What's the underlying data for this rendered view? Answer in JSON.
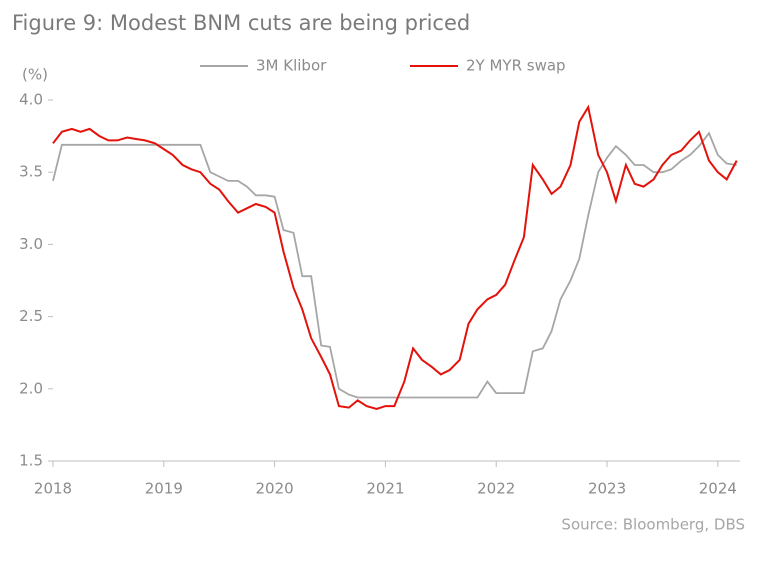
{
  "chart_data": {
    "type": "line",
    "title": "Figure 9: Modest BNM cuts are being priced",
    "y_unit": "(%)",
    "source": "Source: Bloomberg, DBS",
    "x": [
      2018.0,
      2018.08,
      2018.17,
      2018.25,
      2018.33,
      2018.42,
      2018.5,
      2018.58,
      2018.67,
      2018.75,
      2018.83,
      2018.92,
      2019.0,
      2019.08,
      2019.17,
      2019.25,
      2019.33,
      2019.42,
      2019.5,
      2019.58,
      2019.67,
      2019.75,
      2019.83,
      2019.92,
      2020.0,
      2020.08,
      2020.17,
      2020.25,
      2020.33,
      2020.42,
      2020.5,
      2020.58,
      2020.67,
      2020.75,
      2020.83,
      2020.92,
      2021.0,
      2021.08,
      2021.17,
      2021.25,
      2021.33,
      2021.42,
      2021.5,
      2021.58,
      2021.67,
      2021.75,
      2021.83,
      2021.92,
      2022.0,
      2022.08,
      2022.17,
      2022.25,
      2022.33,
      2022.42,
      2022.5,
      2022.58,
      2022.67,
      2022.75,
      2022.83,
      2022.92,
      2023.0,
      2023.08,
      2023.17,
      2023.25,
      2023.33,
      2023.42,
      2023.5,
      2023.58,
      2023.67,
      2023.75,
      2023.83,
      2023.92,
      2024.0,
      2024.08,
      2024.17
    ],
    "series": [
      {
        "name": "3M Klibor",
        "color": "#a6a6a6",
        "values": [
          3.44,
          3.69,
          3.69,
          3.69,
          3.69,
          3.69,
          3.69,
          3.69,
          3.69,
          3.69,
          3.69,
          3.69,
          3.69,
          3.69,
          3.69,
          3.69,
          3.69,
          3.5,
          3.47,
          3.44,
          3.44,
          3.4,
          3.34,
          3.34,
          3.33,
          3.1,
          3.08,
          2.78,
          2.78,
          2.3,
          2.29,
          2.0,
          1.96,
          1.94,
          1.94,
          1.94,
          1.94,
          1.94,
          1.94,
          1.94,
          1.94,
          1.94,
          1.94,
          1.94,
          1.94,
          1.94,
          1.94,
          2.05,
          1.97,
          1.97,
          1.97,
          1.97,
          2.26,
          2.28,
          2.4,
          2.62,
          2.75,
          2.9,
          3.2,
          3.5,
          3.6,
          3.68,
          3.62,
          3.55,
          3.55,
          3.5,
          3.5,
          3.52,
          3.58,
          3.62,
          3.68,
          3.77,
          3.62,
          3.56,
          3.55
        ]
      },
      {
        "name": "2Y MYR swap",
        "color": "#e3120b",
        "values": [
          3.7,
          3.78,
          3.8,
          3.78,
          3.8,
          3.75,
          3.72,
          3.72,
          3.74,
          3.73,
          3.72,
          3.7,
          3.66,
          3.62,
          3.55,
          3.52,
          3.5,
          3.42,
          3.38,
          3.3,
          3.22,
          3.25,
          3.28,
          3.26,
          3.22,
          2.95,
          2.7,
          2.55,
          2.35,
          2.22,
          2.1,
          1.88,
          1.87,
          1.92,
          1.88,
          1.86,
          1.88,
          1.88,
          2.05,
          2.28,
          2.2,
          2.15,
          2.1,
          2.13,
          2.2,
          2.45,
          2.55,
          2.62,
          2.65,
          2.72,
          2.9,
          3.05,
          3.55,
          3.45,
          3.35,
          3.4,
          3.55,
          3.85,
          3.95,
          3.62,
          3.5,
          3.3,
          3.55,
          3.42,
          3.4,
          3.45,
          3.55,
          3.62,
          3.65,
          3.72,
          3.78,
          3.58,
          3.5,
          3.45,
          3.58
        ]
      }
    ],
    "xlim": [
      2018,
      2024.2
    ],
    "xticks": [
      2018,
      2019,
      2020,
      2021,
      2022,
      2023,
      2024
    ],
    "ylim": [
      1.5,
      4
    ],
    "yticks": [
      1.5,
      {
        "value": 2,
        "label": "2.0"
      },
      2.5,
      {
        "value": 3,
        "label": "3.0"
      },
      3.5,
      {
        "value": 4,
        "label": "4.0"
      }
    ],
    "grid": false
  }
}
